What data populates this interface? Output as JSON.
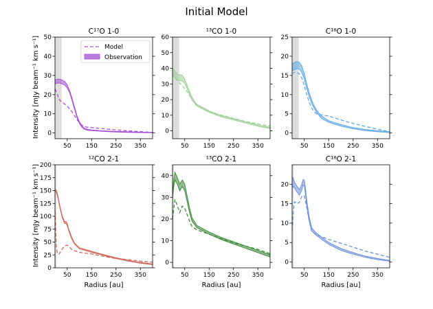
{
  "figure": {
    "title": "Initial Model",
    "xlabel": "Radius [au]",
    "ylabel": "Intensity [mJy beam⁻¹ km s⁻¹]"
  },
  "legend": {
    "model_label": "Model",
    "observation_label": "Observation",
    "location": "upper right of first panel"
  },
  "chart_data": [
    {
      "type": "line",
      "panel": "top-left",
      "title": "C¹⁷O 1-0",
      "color": "#a74fd6",
      "xlim": [
        0,
        400
      ],
      "ylim": [
        -3,
        50
      ],
      "yticks": [
        0,
        10,
        20,
        30,
        40,
        50
      ],
      "xticks": [
        50,
        150,
        250,
        350
      ],
      "beam_shading": [
        0,
        27
      ],
      "model": {
        "x": [
          0,
          10,
          20,
          35,
          50,
          70,
          90,
          110,
          130,
          150,
          200,
          250,
          300,
          350,
          400
        ],
        "y": [
          23,
          20,
          17,
          15.5,
          14,
          11,
          7,
          4,
          3,
          2.8,
          2.2,
          1.6,
          1.1,
          0.7,
          0.3
        ]
      },
      "observation": {
        "x": [
          0,
          10,
          20,
          30,
          40,
          50,
          60,
          70,
          80,
          90,
          100,
          110,
          120,
          130,
          150,
          200,
          250,
          300,
          350,
          400
        ],
        "low": [
          25.5,
          26,
          26,
          25.5,
          25,
          23.5,
          21,
          17,
          12.5,
          8,
          5,
          3,
          2,
          1.5,
          1.2,
          0.8,
          0.5,
          0.3,
          0.2,
          0.1
        ],
        "high": [
          27.5,
          28,
          28,
          27.5,
          26.8,
          25,
          22,
          18,
          13.5,
          9,
          5.8,
          3.7,
          2.5,
          2,
          1.6,
          1.1,
          0.8,
          0.6,
          0.4,
          0.3
        ]
      }
    },
    {
      "type": "line",
      "panel": "top-middle",
      "title": "¹³CO 1-0",
      "color": "#9ccd96",
      "xlim": [
        0,
        400
      ],
      "ylim": [
        -5,
        60
      ],
      "yticks": [
        0,
        10,
        20,
        30,
        40,
        50,
        60
      ],
      "xticks": [
        50,
        150,
        250,
        350
      ],
      "beam_shading": [
        0,
        27
      ],
      "model": {
        "x": [
          0,
          10,
          20,
          40,
          60,
          80,
          100,
          150,
          200,
          250,
          300,
          350,
          400
        ],
        "y": [
          37,
          34,
          32,
          29,
          25,
          20,
          16,
          12,
          10,
          8,
          6,
          4.5,
          3
        ]
      },
      "observation": {
        "x": [
          0,
          10,
          20,
          30,
          40,
          50,
          60,
          70,
          80,
          90,
          100,
          150,
          200,
          250,
          300,
          350,
          400
        ],
        "low": [
          35,
          34,
          32.5,
          32,
          32,
          30.5,
          27,
          23,
          20,
          18,
          16,
          12,
          9,
          7,
          5,
          3,
          1.5
        ],
        "high": [
          40,
          38,
          36,
          36,
          35.5,
          33,
          29,
          25,
          21.5,
          19,
          17,
          12.8,
          9.8,
          7.8,
          5.8,
          3.8,
          2.2
        ]
      }
    },
    {
      "type": "line",
      "panel": "top-right",
      "title": "C¹⁸O 1-0",
      "color": "#5aa7e6",
      "xlim": [
        0,
        400
      ],
      "ylim": [
        -1.5,
        25
      ],
      "yticks": [
        0,
        5,
        10,
        15,
        20,
        25
      ],
      "xticks": [
        50,
        150,
        250,
        350
      ],
      "beam_shading": [
        0,
        27
      ],
      "model": {
        "x": [
          0,
          10,
          20,
          30,
          40,
          50,
          60,
          70,
          80,
          90,
          100,
          120,
          150,
          200,
          250,
          300,
          350,
          400
        ],
        "y": [
          15.5,
          15.8,
          15.8,
          15.4,
          14.3,
          12.3,
          10,
          8,
          6.5,
          5.6,
          5,
          4.7,
          4.4,
          3.4,
          2.5,
          1.7,
          1,
          0.3
        ]
      },
      "observation": {
        "x": [
          0,
          10,
          20,
          30,
          40,
          50,
          60,
          70,
          80,
          90,
          100,
          120,
          150,
          200,
          250,
          300,
          350,
          400
        ],
        "low": [
          16.2,
          16.5,
          16.8,
          16.6,
          15.8,
          14,
          11.6,
          9.5,
          7.8,
          6.5,
          5.4,
          3.8,
          2.8,
          1.8,
          1.1,
          0.6,
          0.3,
          0.1
        ],
        "high": [
          18,
          18.4,
          18.6,
          18.4,
          17.4,
          15.4,
          12.8,
          10.4,
          8.6,
          7.1,
          6,
          4.4,
          3.2,
          2.2,
          1.4,
          0.9,
          0.6,
          0.3
        ]
      }
    },
    {
      "type": "line",
      "panel": "bottom-left",
      "title": "¹²CO 2-1",
      "color": "#d2665a",
      "xlim": [
        0,
        400
      ],
      "ylim": [
        0,
        200
      ],
      "yticks": [
        0,
        25,
        50,
        75,
        100,
        125,
        150,
        175,
        200
      ],
      "xticks": [
        50,
        150,
        250,
        350
      ],
      "beam_shading": [
        0,
        6
      ],
      "model": {
        "x": [
          0,
          3,
          6,
          10,
          15,
          20,
          30,
          40,
          50,
          60,
          70,
          100,
          150,
          200,
          250,
          300,
          350,
          400
        ],
        "y": [
          110,
          70,
          40,
          28,
          26,
          29,
          37,
          43,
          44,
          40,
          35,
          30,
          27,
          22,
          18,
          16,
          13,
          11
        ]
      },
      "observation": {
        "x": [
          0,
          5,
          10,
          20,
          30,
          40,
          45,
          50,
          55,
          60,
          70,
          80,
          100,
          150,
          200,
          250,
          300,
          350,
          400
        ],
        "low": [
          148,
          147,
          140,
          117,
          97,
          86,
          86,
          82,
          74,
          67,
          55,
          46,
          37,
          30,
          24,
          18,
          13,
          9,
          6
        ],
        "high": [
          152,
          151,
          144,
          120,
          100,
          89,
          90,
          86,
          77,
          70,
          58,
          48,
          39,
          32,
          25.5,
          19.5,
          14.5,
          10.5,
          7.5
        ]
      }
    },
    {
      "type": "line",
      "panel": "bottom-middle",
      "title": "¹³CO 2-1",
      "color": "#3d8a3a",
      "xlim": [
        0,
        400
      ],
      "ylim": [
        -2.5,
        45
      ],
      "yticks": [
        0,
        10,
        20,
        30,
        40
      ],
      "xticks": [
        50,
        150,
        250,
        350
      ],
      "beam_shading": [
        0,
        6
      ],
      "model": {
        "x": [
          0,
          5,
          10,
          20,
          30,
          40,
          50,
          60,
          70,
          80,
          100,
          150,
          200,
          250,
          300,
          350,
          400
        ],
        "y": [
          20,
          25,
          29,
          26,
          23,
          26,
          25,
          22,
          19,
          16.5,
          15,
          13,
          11,
          9,
          7.5,
          6,
          4
        ]
      },
      "observation": {
        "x": [
          0,
          5,
          10,
          20,
          30,
          40,
          50,
          60,
          70,
          80,
          100,
          150,
          200,
          250,
          300,
          350,
          400
        ],
        "low": [
          30,
          35,
          38,
          36,
          33,
          35,
          33,
          28,
          23,
          19,
          16,
          13,
          10.5,
          8.5,
          6.5,
          4.5,
          2.5
        ],
        "high": [
          33,
          38,
          41.5,
          39,
          36,
          38,
          36,
          30.5,
          25,
          20.5,
          17,
          14,
          11.5,
          9.5,
          7.5,
          5.5,
          3.5
        ]
      }
    },
    {
      "type": "line",
      "panel": "bottom-right",
      "title": "C¹⁸O 2-1",
      "color": "#6b8fe0",
      "xlim": [
        0,
        400
      ],
      "ylim": [
        -1.5,
        25
      ],
      "yticks": [
        0,
        5,
        10,
        15,
        20
      ],
      "xticks": [
        50,
        150,
        250,
        350
      ],
      "beam_shading": [
        0,
        6
      ],
      "model": {
        "x": [
          0,
          5,
          10,
          20,
          30,
          40,
          50,
          60,
          70,
          80,
          100,
          150,
          200,
          250,
          300,
          350,
          400
        ],
        "y": [
          8,
          13,
          15.5,
          15,
          15.3,
          17,
          17,
          14,
          10.5,
          8,
          7,
          5.8,
          4.8,
          3.8,
          2.8,
          2,
          1.2
        ]
      },
      "observation": {
        "x": [
          0,
          5,
          10,
          20,
          30,
          40,
          45,
          50,
          55,
          60,
          70,
          80,
          100,
          150,
          200,
          250,
          300,
          350,
          400
        ],
        "low": [
          19,
          19.5,
          19,
          18,
          17.2,
          18.5,
          19.8,
          19.5,
          17.5,
          14.5,
          10.5,
          8,
          6.8,
          4.5,
          3,
          2,
          1.2,
          0.6,
          0.2
        ],
        "high": [
          22,
          21.5,
          20.5,
          19.5,
          18.6,
          20,
          21.2,
          21,
          18.8,
          15.8,
          11.5,
          8.8,
          7.4,
          5,
          3.5,
          2.4,
          1.5,
          0.9,
          0.4
        ]
      }
    }
  ]
}
